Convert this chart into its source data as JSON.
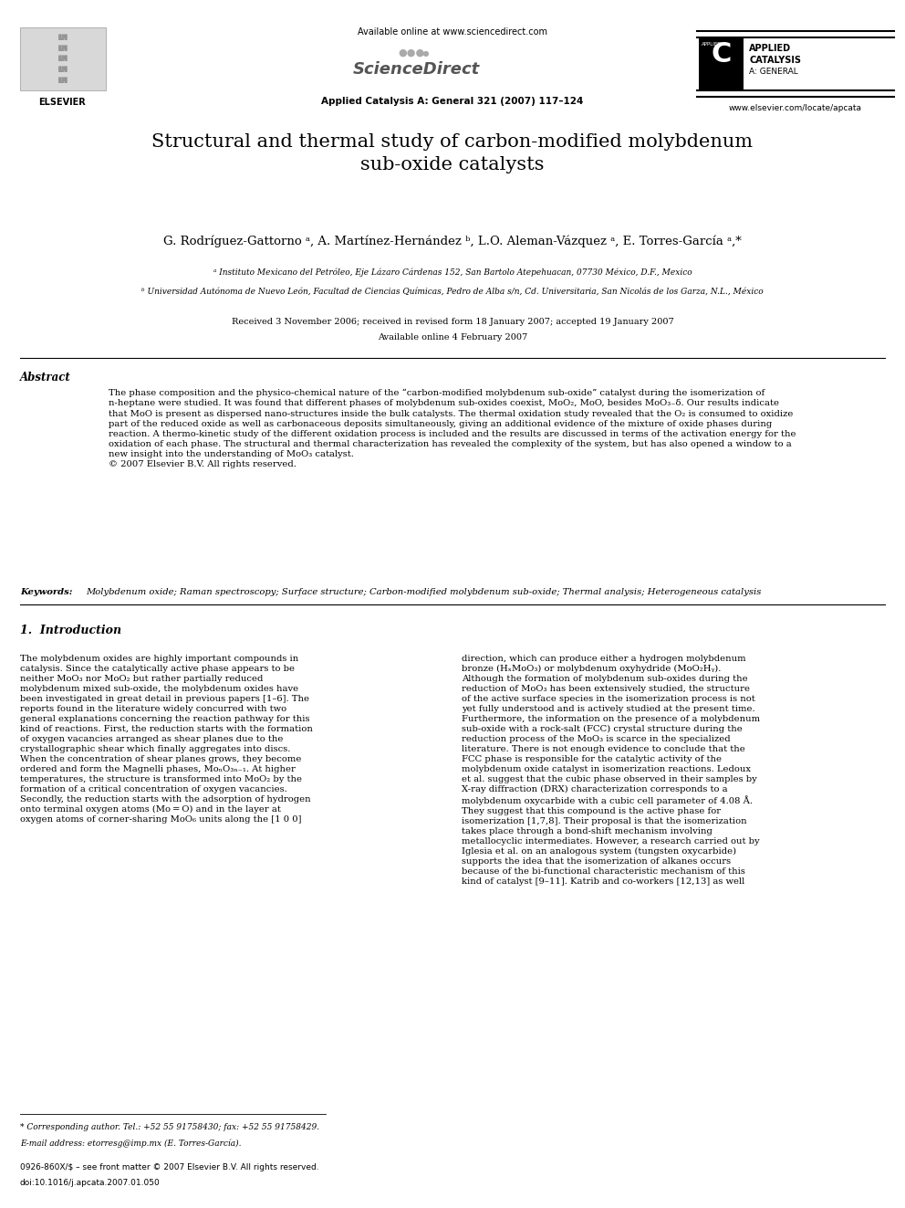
{
  "bg_color": "#ffffff",
  "header": {
    "available_online": "Available online at www.sciencedirect.com",
    "journal_info": "Applied Catalysis A: General 321 (2007) 117–124",
    "website": "www.elsevier.com/locate/apcata",
    "sciencedirect_label": "ScienceDirect",
    "journal_label_line1": "APPLIED",
    "journal_label_line2": "CATALYSIS",
    "journal_label_line3": "A: GENERAL"
  },
  "title": "Structural and thermal study of carbon-modified molybdenum\nsub-oxide catalysts",
  "authors": "G. Rodríguez-Gattorno ᵃ, A. Martínez-Hernández ᵇ, L.O. Aleman-Vázquez ᵃ, E. Torres-García ᵃ,*",
  "affil_a": "ᵃ Instituto Mexicano del Petróleo, Eje Lázaro Cárdenas 152, San Bartolo Atepehuacan, 07730 México, D.F., Mexico",
  "affil_b": "ᵇ Universidad Autónoma de Nuevo León, Facultad de Ciencias Químicas, Pedro de Alba s/n, Cd. Universitaria, San Nicolás de los Garza, N.L., México",
  "received": "Received 3 November 2006; received in revised form 18 January 2007; accepted 19 January 2007",
  "available_online_date": "Available online 4 February 2007",
  "abstract_title": "Abstract",
  "abstract_text": "The phase composition and the physico-chemical nature of the “carbon-modified molybdenum sub-oxide” catalyst during the isomerization of\nn-heptane were studied. It was found that different phases of molybdenum sub-oxides coexist, MoO₂, MoO, besides MoO₃₋δ. Our results indicate\nthat MoO is present as dispersed nano-structures inside the bulk catalysts. The thermal oxidation study revealed that the O₂ is consumed to oxidize\npart of the reduced oxide as well as carbonaceous deposits simultaneously, giving an additional evidence of the mixture of oxide phases during\nreaction. A thermo-kinetic study of the different oxidation process is included and the results are discussed in terms of the activation energy for the\noxidation of each phase. The structural and thermal characterization has revealed the complexity of the system, but has also opened a window to a\nnew insight into the understanding of MoO₃ catalyst.\n© 2007 Elsevier B.V. All rights reserved.",
  "keywords_label": "Keywords:",
  "keywords_text": "Molybdenum oxide; Raman spectroscopy; Surface structure; Carbon-modified molybdenum sub-oxide; Thermal analysis; Heterogeneous catalysis",
  "section1_title": "1.  Introduction",
  "section1_left": "The molybdenum oxides are highly important compounds in\ncatalysis. Since the catalytically active phase appears to be\nneither MoO₃ nor MoO₂ but rather partially reduced\nmolybdenum mixed sub-oxide, the molybdenum oxides have\nbeen investigated in great detail in previous papers [1–6]. The\nreports found in the literature widely concurred with two\ngeneral explanations concerning the reaction pathway for this\nkind of reactions. First, the reduction starts with the formation\nof oxygen vacancies arranged as shear planes due to the\ncrystallographic shear which finally aggregates into discs.\nWhen the concentration of shear planes grows, they become\nordered and form the Magnelli phases, MoₙO₃ₙ₋₁. At higher\ntemperatures, the structure is transformed into MoO₂ by the\nformation of a critical concentration of oxygen vacancies.\nSecondly, the reduction starts with the adsorption of hydrogen\nonto terminal oxygen atoms (Mo = O) and in the layer at\noxygen atoms of corner-sharing MoO₆ units along the [1 0 0]",
  "section1_right": "direction, which can produce either a hydrogen molybdenum\nbronze (HₓMoO₃) or molybdenum oxyhydride (MoO₂Hᵧ).\nAlthough the formation of molybdenum sub-oxides during the\nreduction of MoO₃ has been extensively studied, the structure\nof the active surface species in the isomerization process is not\nyet fully understood and is actively studied at the present time.\nFurthermore, the information on the presence of a molybdenum\nsub-oxide with a rock-salt (FCC) crystal structure during the\nreduction process of the MoO₃ is scarce in the specialized\nliterature. There is not enough evidence to conclude that the\nFCC phase is responsible for the catalytic activity of the\nmolybdenum oxide catalyst in isomerization reactions. Ledoux\net al. suggest that the cubic phase observed in their samples by\nX-ray diffraction (DRX) characterization corresponds to a\nmolybdenum oxycarbide with a cubic cell parameter of 4.08 Å.\nThey suggest that this compound is the active phase for\nisomerization [1,7,8]. Their proposal is that the isomerization\ntakes place through a bond-shift mechanism involving\nmetallocyclic intermediates. However, a research carried out by\nIglesia et al. on an analogous system (tungsten oxycarbide)\nsupports the idea that the isomerization of alkanes occurs\nbecause of the bi-functional characteristic mechanism of this\nkind of catalyst [9–11]. Katrib and co-workers [12,13] as well",
  "footnote_line1": "* Corresponding author. Tel.: +52 55 91758430; fax: +52 55 91758429.",
  "footnote_line2": "E-mail address: etorresg@imp.mx (E. Torres-García).",
  "bottom_left1": "0926-860X/$ – see front matter © 2007 Elsevier B.V. All rights reserved.",
  "bottom_left2": "doi:10.1016/j.apcata.2007.01.050"
}
